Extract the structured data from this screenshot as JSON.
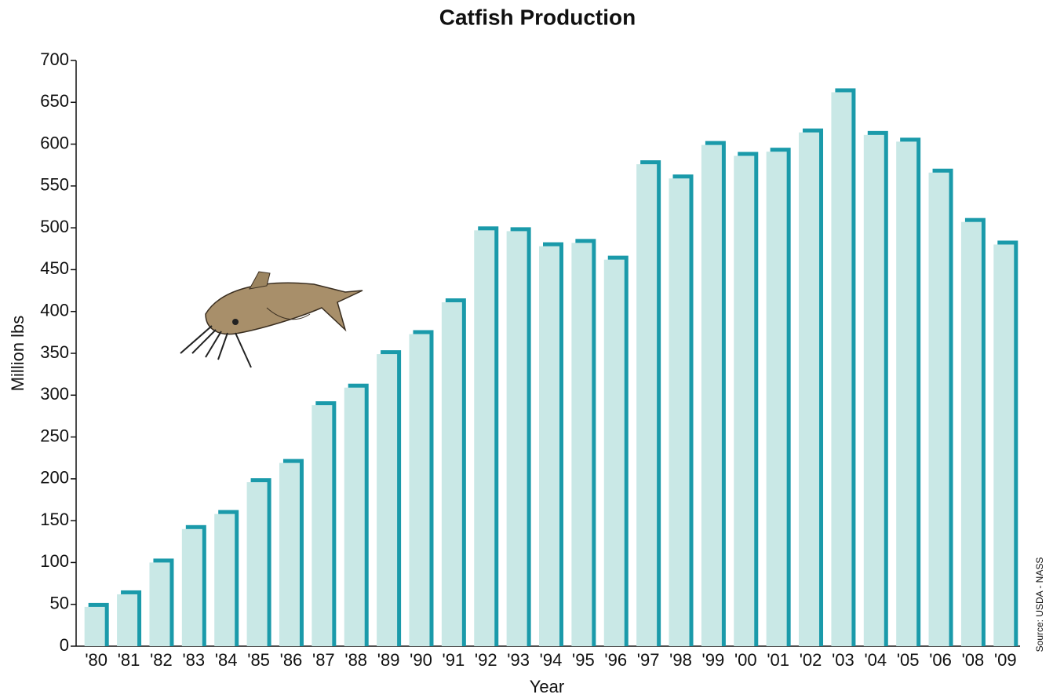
{
  "chart_data": {
    "type": "bar",
    "title": "Catfish Production",
    "x_label": "Year",
    "y_label": "Million lbs",
    "source": "Source: USDA - NASS",
    "categories": [
      "'80",
      "'81",
      "'82",
      "'83",
      "'84",
      "'85",
      "'86",
      "'87",
      "'88",
      "'89",
      "'90",
      "'91",
      "'92",
      "'93",
      "'94",
      "'95",
      "'96",
      "'97",
      "'98",
      "'99",
      "'00",
      "'01",
      "'02",
      "'03",
      "'04",
      "'05",
      "'06",
      "'08",
      "'09"
    ],
    "values": [
      47,
      62,
      100,
      140,
      158,
      196,
      219,
      288,
      309,
      349,
      373,
      411,
      497,
      496,
      478,
      482,
      462,
      576,
      559,
      599,
      586,
      591,
      614,
      662,
      611,
      603,
      566,
      507,
      480
    ],
    "color": "#c9e8e6",
    "shadow_color": "#1a9aaa",
    "ylim": [
      0,
      700
    ],
    "yticks": [
      0,
      50,
      100,
      150,
      200,
      250,
      300,
      350,
      400,
      450,
      500,
      550,
      600,
      650,
      700
    ],
    "grid": false
  }
}
